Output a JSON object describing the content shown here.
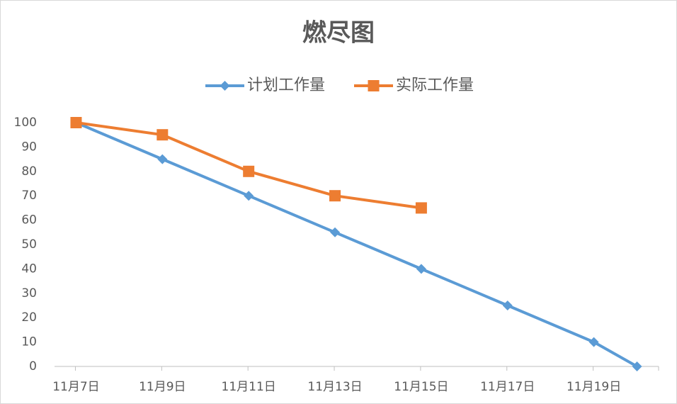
{
  "chart_data": {
    "type": "line",
    "title": "燃尽图",
    "series": [
      {
        "name": "计划工作量",
        "color": "#5b9bd5",
        "marker": "diamond",
        "x": [
          7,
          9,
          11,
          13,
          15,
          17,
          19,
          20
        ],
        "values": [
          100,
          85,
          70,
          55,
          40,
          25,
          10,
          0
        ]
      },
      {
        "name": "实际工作量",
        "color": "#ed7d31",
        "marker": "square",
        "x": [
          7,
          9,
          11,
          13,
          15
        ],
        "values": [
          100,
          95,
          80,
          70,
          65
        ]
      }
    ],
    "xlim": [
      6.5,
      20.5
    ],
    "xticks": [
      {
        "value": 7,
        "label": "11月7日"
      },
      {
        "value": 9,
        "label": "11月9日"
      },
      {
        "value": 11,
        "label": "11月11日"
      },
      {
        "value": 13,
        "label": "11月13日"
      },
      {
        "value": 15,
        "label": "11月15日"
      },
      {
        "value": 17,
        "label": "11月17日"
      },
      {
        "value": 19,
        "label": "11月19日"
      }
    ],
    "ylim": [
      0,
      100
    ],
    "yticks": [
      0,
      10,
      20,
      30,
      40,
      50,
      60,
      70,
      80,
      90,
      100
    ],
    "grid": false,
    "legend": "top"
  }
}
